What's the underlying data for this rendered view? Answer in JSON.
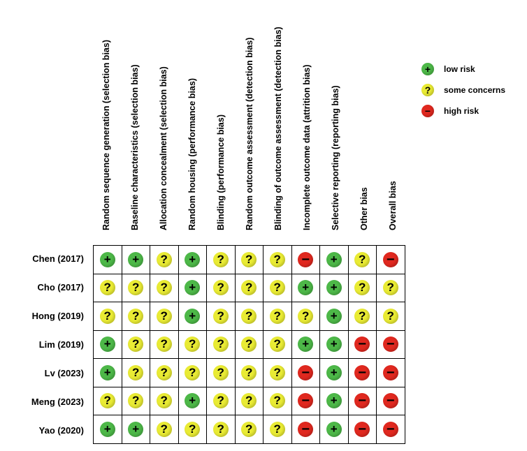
{
  "columns": [
    "Random sequence generation (selection bias)",
    "Baseline characteristics (selection bias)",
    "Allocation concealment (selection bias)",
    "Random housing (performance bias)",
    "Blinding (performance bias)",
    "Random outcome assessment (detection bias)",
    "Blinding of outcome assessment (detection bias)",
    "Incomplete outcome data (attrition bias)",
    "Selective reporting (reporting bias)",
    "Other bias",
    "Overall bias"
  ],
  "studies": [
    {
      "name": "Chen (2017)",
      "ratings": [
        "low",
        "low",
        "some",
        "low",
        "some",
        "some",
        "some",
        "high",
        "low",
        "some",
        "high"
      ]
    },
    {
      "name": "Cho (2017)",
      "ratings": [
        "some",
        "some",
        "some",
        "low",
        "some",
        "some",
        "some",
        "low",
        "low",
        "some",
        "some"
      ]
    },
    {
      "name": "Hong (2019)",
      "ratings": [
        "some",
        "some",
        "some",
        "low",
        "some",
        "some",
        "some",
        "some",
        "low",
        "some",
        "some"
      ]
    },
    {
      "name": "Lim (2019)",
      "ratings": [
        "low",
        "some",
        "some",
        "some",
        "some",
        "some",
        "some",
        "low",
        "low",
        "high",
        "high"
      ]
    },
    {
      "name": "Lv (2023)",
      "ratings": [
        "low",
        "some",
        "some",
        "some",
        "some",
        "some",
        "some",
        "high",
        "low",
        "high",
        "high"
      ]
    },
    {
      "name": "Meng (2023)",
      "ratings": [
        "some",
        "some",
        "some",
        "low",
        "some",
        "some",
        "some",
        "high",
        "low",
        "high",
        "high"
      ]
    },
    {
      "name": "Yao (2020)",
      "ratings": [
        "low",
        "low",
        "some",
        "some",
        "some",
        "some",
        "some",
        "high",
        "low",
        "high",
        "high"
      ]
    }
  ],
  "symbols": {
    "low": "+",
    "some": "?",
    "high": "−"
  },
  "colors": {
    "low": "#4db848",
    "some": "#e9eb34",
    "high": "#e0281f"
  },
  "legend": [
    {
      "key": "low",
      "label": "low risk"
    },
    {
      "key": "some",
      "label": "some concerns"
    },
    {
      "key": "high",
      "label": "high risk"
    }
  ]
}
